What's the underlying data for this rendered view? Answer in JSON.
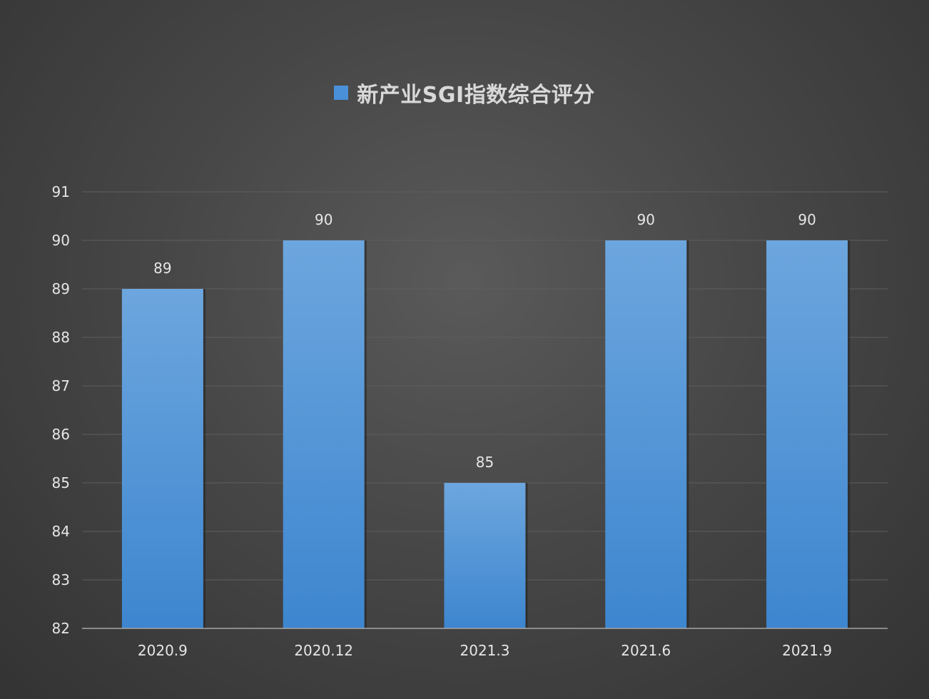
{
  "chart_data": {
    "type": "bar",
    "legend_position": "top",
    "grid": true,
    "categories": [
      "2020.9",
      "2020.12",
      "2021.3",
      "2021.6",
      "2021.9"
    ],
    "series": [
      {
        "name": "新产业SGI指数综合评分",
        "values": [
          89,
          90,
          85,
          90,
          90
        ],
        "color": "#4a90d9"
      }
    ],
    "y_ticks": [
      "82",
      "83",
      "84",
      "85",
      "86",
      "87",
      "88",
      "89",
      "90",
      "91"
    ],
    "ylim": [
      82,
      91
    ],
    "data_labels": [
      "89",
      "90",
      "85",
      "90",
      "90"
    ]
  },
  "colors": {
    "bar_top": "#6da6de",
    "bar_bottom": "#3d86cf",
    "grid": "#5e5e5e",
    "axis": "#a6a6a6"
  }
}
